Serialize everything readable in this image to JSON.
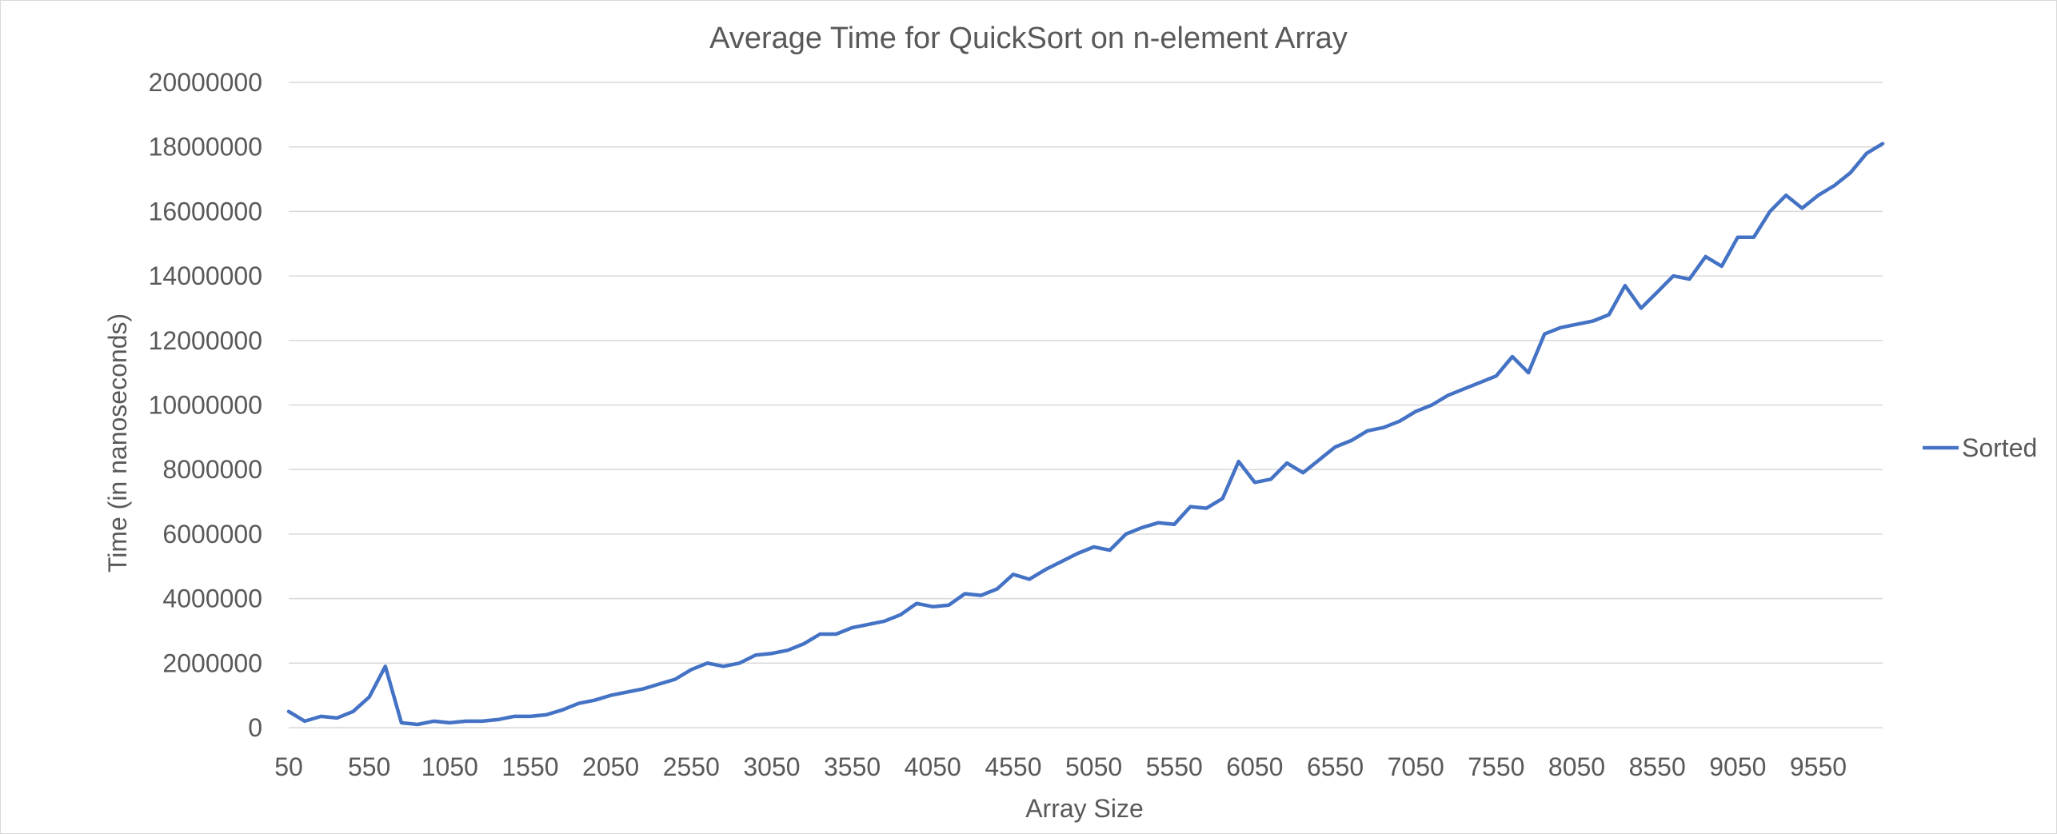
{
  "chart_data": {
    "type": "line",
    "title": "Average Time for QuickSort on n-element Array",
    "xlabel": "Array Size",
    "ylabel": "Time (in nanoseconds)",
    "ylim": [
      0,
      20000000
    ],
    "yticks": [
      0,
      2000000,
      4000000,
      6000000,
      8000000,
      10000000,
      12000000,
      14000000,
      16000000,
      18000000,
      20000000
    ],
    "xtick_labels": [
      "50",
      "550",
      "1050",
      "1550",
      "2050",
      "2550",
      "3050",
      "3550",
      "4050",
      "4550",
      "5050",
      "5550",
      "6050",
      "6550",
      "7050",
      "7550",
      "8050",
      "8550",
      "9050",
      "9550"
    ],
    "grid": true,
    "legend_position": "right",
    "series": [
      {
        "name": "Sorted",
        "color": "#4472C4",
        "x": [
          50,
          150,
          250,
          350,
          450,
          550,
          650,
          750,
          850,
          950,
          1050,
          1150,
          1250,
          1350,
          1450,
          1550,
          1650,
          1750,
          1850,
          1950,
          2050,
          2150,
          2250,
          2350,
          2450,
          2550,
          2650,
          2750,
          2850,
          2950,
          3050,
          3150,
          3250,
          3350,
          3450,
          3550,
          3650,
          3750,
          3850,
          3950,
          4050,
          4150,
          4250,
          4350,
          4450,
          4550,
          4650,
          4750,
          4850,
          4950,
          5050,
          5150,
          5250,
          5350,
          5450,
          5550,
          5650,
          5750,
          5850,
          5950,
          6050,
          6150,
          6250,
          6350,
          6450,
          6550,
          6650,
          6750,
          6850,
          6950,
          7050,
          7150,
          7250,
          7350,
          7450,
          7550,
          7650,
          7750,
          7850,
          7950,
          8050,
          8150,
          8250,
          8350,
          8450,
          8550,
          8650,
          8750,
          8850,
          8950,
          9050,
          9150,
          9250,
          9350,
          9450,
          9550,
          9650,
          9750,
          9850,
          9950
        ],
        "y": [
          500000,
          200000,
          350000,
          300000,
          500000,
          950000,
          1900000,
          150000,
          100000,
          200000,
          150000,
          200000,
          200000,
          250000,
          350000,
          350000,
          400000,
          550000,
          750000,
          850000,
          1000000,
          1100000,
          1200000,
          1350000,
          1500000,
          1800000,
          2000000,
          1900000,
          2000000,
          2250000,
          2300000,
          2400000,
          2600000,
          2900000,
          2900000,
          3100000,
          3200000,
          3300000,
          3500000,
          3850000,
          3750000,
          3800000,
          4150000,
          4100000,
          4300000,
          4750000,
          4600000,
          4900000,
          5150000,
          5400000,
          5600000,
          5500000,
          6000000,
          6200000,
          6350000,
          6300000,
          6850000,
          6800000,
          7100000,
          8250000,
          7600000,
          7700000,
          8200000,
          7900000,
          8300000,
          8700000,
          8900000,
          9200000,
          9300000,
          9500000,
          9800000,
          10000000,
          10300000,
          10500000,
          10700000,
          10900000,
          11500000,
          11000000,
          12200000,
          12400000,
          12500000,
          12600000,
          12800000,
          13700000,
          13000000,
          13500000,
          14000000,
          13900000,
          14600000,
          14300000,
          15200000,
          15200000,
          16000000,
          16500000,
          16100000,
          16500000,
          16800000,
          17200000,
          17800000,
          18100000
        ]
      }
    ]
  }
}
